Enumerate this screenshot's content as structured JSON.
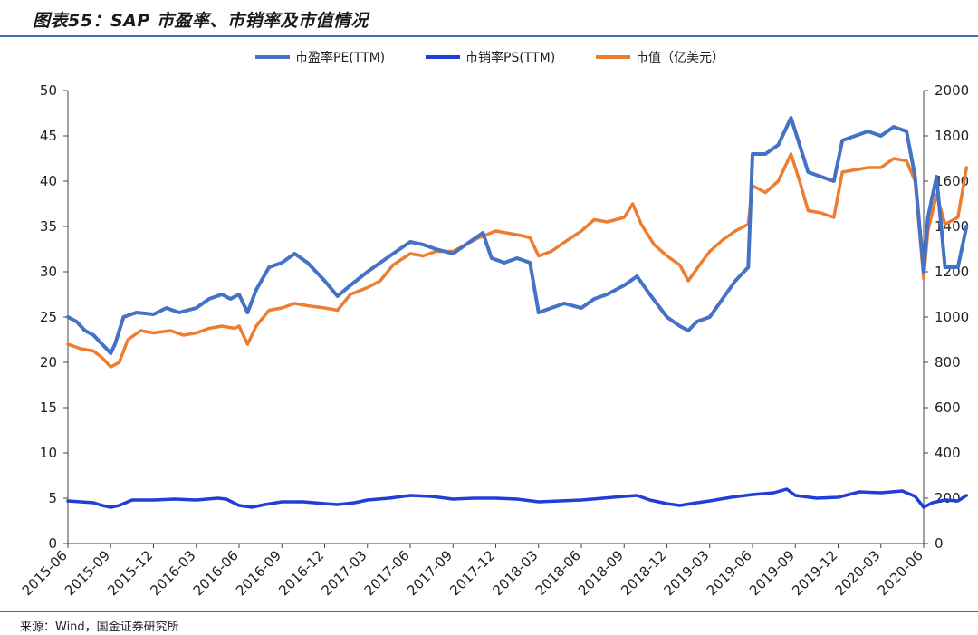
{
  "title": "图表55：SAP 市盈率、市销率及市值情况",
  "source": "来源：Wind，国金证券研究所",
  "colors": {
    "pe": "#4472c4",
    "ps": "#1f3fd6",
    "mv": "#ed7d31",
    "accent": "#3d6db4"
  },
  "chart_data": {
    "type": "line",
    "title": "图表55：SAP 市盈率、市销率及市值情况",
    "x_labels": [
      "2015-06",
      "2015-09",
      "2015-12",
      "2016-03",
      "2016-06",
      "2016-09",
      "2016-12",
      "2017-03",
      "2017-06",
      "2017-09",
      "2017-12",
      "2018-03",
      "2018-06",
      "2018-09",
      "2018-12",
      "2019-03",
      "2019-06",
      "2019-09",
      "2019-12",
      "2020-03",
      "2020-06"
    ],
    "left_axis": {
      "min": 0,
      "max": 50,
      "ticks": [
        0,
        5,
        10,
        15,
        20,
        25,
        30,
        35,
        40,
        45,
        50
      ]
    },
    "right_axis": {
      "min": 0,
      "max": 2000,
      "ticks": [
        0,
        200,
        400,
        600,
        800,
        1000,
        1200,
        1400,
        1600,
        1800,
        2000
      ]
    },
    "legend_position": "top-center",
    "series": [
      {
        "name": "市盈率PE(TTM)",
        "axis": "left",
        "points": [
          [
            0,
            25
          ],
          [
            0.2,
            24.5
          ],
          [
            0.4,
            23.5
          ],
          [
            0.6,
            23
          ],
          [
            0.8,
            22
          ],
          [
            1,
            21
          ],
          [
            1.1,
            22
          ],
          [
            1.3,
            25
          ],
          [
            1.6,
            25.5
          ],
          [
            2,
            25.3
          ],
          [
            2.3,
            26
          ],
          [
            2.6,
            25.5
          ],
          [
            3,
            26
          ],
          [
            3.3,
            27
          ],
          [
            3.6,
            27.5
          ],
          [
            3.8,
            27
          ],
          [
            4,
            27.5
          ],
          [
            4.2,
            25.5
          ],
          [
            4.4,
            28
          ],
          [
            4.7,
            30.5
          ],
          [
            5,
            31
          ],
          [
            5.3,
            32
          ],
          [
            5.6,
            31
          ],
          [
            6,
            29
          ],
          [
            6.3,
            27.3
          ],
          [
            6.6,
            28.5
          ],
          [
            7,
            30
          ],
          [
            7.3,
            31
          ],
          [
            7.6,
            32
          ],
          [
            8,
            33.3
          ],
          [
            8.3,
            33
          ],
          [
            8.6,
            32.5
          ],
          [
            9,
            32
          ],
          [
            9.3,
            33
          ],
          [
            9.7,
            34.3
          ],
          [
            9.9,
            31.5
          ],
          [
            10.2,
            31
          ],
          [
            10.5,
            31.5
          ],
          [
            10.8,
            31
          ],
          [
            11,
            25.5
          ],
          [
            11.3,
            26
          ],
          [
            11.6,
            26.5
          ],
          [
            12,
            26
          ],
          [
            12.3,
            27
          ],
          [
            12.6,
            27.5
          ],
          [
            13,
            28.5
          ],
          [
            13.3,
            29.5
          ],
          [
            13.6,
            27.5
          ],
          [
            14,
            25
          ],
          [
            14.3,
            24
          ],
          [
            14.5,
            23.5
          ],
          [
            14.7,
            24.5
          ],
          [
            15,
            25
          ],
          [
            15.3,
            27
          ],
          [
            15.6,
            29
          ],
          [
            15.9,
            30.5
          ],
          [
            16,
            43
          ],
          [
            16.3,
            43
          ],
          [
            16.6,
            44
          ],
          [
            16.9,
            47
          ],
          [
            17.1,
            44
          ],
          [
            17.3,
            41
          ],
          [
            17.6,
            40.5
          ],
          [
            17.9,
            40
          ],
          [
            18.1,
            44.5
          ],
          [
            18.4,
            45
          ],
          [
            18.7,
            45.5
          ],
          [
            19,
            45
          ],
          [
            19.3,
            46
          ],
          [
            19.6,
            45.5
          ],
          [
            19.8,
            40.5
          ],
          [
            20,
            30
          ],
          [
            20.1,
            36
          ],
          [
            20.3,
            40.5
          ],
          [
            20.5,
            30.5
          ],
          [
            20.8,
            30.5
          ],
          [
            21,
            35
          ]
        ]
      },
      {
        "name": "市销率PS(TTM)",
        "axis": "left",
        "points": [
          [
            0,
            4.7
          ],
          [
            0.3,
            4.6
          ],
          [
            0.6,
            4.5
          ],
          [
            0.8,
            4.2
          ],
          [
            1,
            4.0
          ],
          [
            1.2,
            4.2
          ],
          [
            1.5,
            4.8
          ],
          [
            2,
            4.8
          ],
          [
            2.5,
            4.9
          ],
          [
            3,
            4.8
          ],
          [
            3.5,
            5.0
          ],
          [
            3.7,
            4.9
          ],
          [
            4,
            4.2
          ],
          [
            4.3,
            4.0
          ],
          [
            4.6,
            4.3
          ],
          [
            5,
            4.6
          ],
          [
            5.5,
            4.6
          ],
          [
            6,
            4.4
          ],
          [
            6.3,
            4.3
          ],
          [
            6.7,
            4.5
          ],
          [
            7,
            4.8
          ],
          [
            7.5,
            5.0
          ],
          [
            8,
            5.3
          ],
          [
            8.5,
            5.2
          ],
          [
            9,
            4.9
          ],
          [
            9.5,
            5.0
          ],
          [
            10,
            5.0
          ],
          [
            10.5,
            4.9
          ],
          [
            11,
            4.6
          ],
          [
            11.5,
            4.7
          ],
          [
            12,
            4.8
          ],
          [
            12.5,
            5.0
          ],
          [
            13,
            5.2
          ],
          [
            13.3,
            5.3
          ],
          [
            13.6,
            4.8
          ],
          [
            14,
            4.4
          ],
          [
            14.3,
            4.2
          ],
          [
            14.7,
            4.5
          ],
          [
            15,
            4.7
          ],
          [
            15.5,
            5.1
          ],
          [
            16,
            5.4
          ],
          [
            16.5,
            5.6
          ],
          [
            16.8,
            6.0
          ],
          [
            17,
            5.3
          ],
          [
            17.5,
            5.0
          ],
          [
            18,
            5.1
          ],
          [
            18.5,
            5.7
          ],
          [
            19,
            5.6
          ],
          [
            19.5,
            5.8
          ],
          [
            19.8,
            5.2
          ],
          [
            20,
            4.0
          ],
          [
            20.2,
            4.5
          ],
          [
            20.5,
            4.8
          ],
          [
            20.8,
            4.7
          ],
          [
            21,
            5.3
          ]
        ]
      },
      {
        "name": "市值（亿美元）",
        "axis": "right",
        "points": [
          [
            0,
            880
          ],
          [
            0.3,
            860
          ],
          [
            0.6,
            850
          ],
          [
            0.8,
            820
          ],
          [
            1,
            780
          ],
          [
            1.2,
            800
          ],
          [
            1.4,
            900
          ],
          [
            1.7,
            940
          ],
          [
            2,
            930
          ],
          [
            2.4,
            940
          ],
          [
            2.7,
            920
          ],
          [
            3,
            930
          ],
          [
            3.3,
            950
          ],
          [
            3.6,
            960
          ],
          [
            3.9,
            950
          ],
          [
            4,
            960
          ],
          [
            4.2,
            880
          ],
          [
            4.4,
            960
          ],
          [
            4.7,
            1030
          ],
          [
            5,
            1040
          ],
          [
            5.3,
            1060
          ],
          [
            5.6,
            1050
          ],
          [
            6,
            1040
          ],
          [
            6.3,
            1030
          ],
          [
            6.6,
            1100
          ],
          [
            7,
            1130
          ],
          [
            7.3,
            1160
          ],
          [
            7.6,
            1230
          ],
          [
            8,
            1280
          ],
          [
            8.3,
            1270
          ],
          [
            8.6,
            1290
          ],
          [
            9,
            1290
          ],
          [
            9.3,
            1320
          ],
          [
            9.6,
            1350
          ],
          [
            10,
            1380
          ],
          [
            10.3,
            1370
          ],
          [
            10.6,
            1360
          ],
          [
            10.8,
            1350
          ],
          [
            11,
            1270
          ],
          [
            11.3,
            1290
          ],
          [
            11.6,
            1330
          ],
          [
            12,
            1380
          ],
          [
            12.3,
            1430
          ],
          [
            12.6,
            1420
          ],
          [
            13,
            1440
          ],
          [
            13.2,
            1500
          ],
          [
            13.4,
            1410
          ],
          [
            13.7,
            1320
          ],
          [
            14,
            1270
          ],
          [
            14.3,
            1230
          ],
          [
            14.5,
            1160
          ],
          [
            14.8,
            1240
          ],
          [
            15,
            1290
          ],
          [
            15.3,
            1340
          ],
          [
            15.6,
            1380
          ],
          [
            15.9,
            1410
          ],
          [
            16,
            1580
          ],
          [
            16.3,
            1550
          ],
          [
            16.6,
            1600
          ],
          [
            16.9,
            1720
          ],
          [
            17.1,
            1600
          ],
          [
            17.3,
            1470
          ],
          [
            17.6,
            1460
          ],
          [
            17.9,
            1440
          ],
          [
            18.1,
            1640
          ],
          [
            18.4,
            1650
          ],
          [
            18.7,
            1660
          ],
          [
            19,
            1660
          ],
          [
            19.3,
            1700
          ],
          [
            19.6,
            1690
          ],
          [
            19.8,
            1600
          ],
          [
            20,
            1170
          ],
          [
            20.1,
            1380
          ],
          [
            20.3,
            1540
          ],
          [
            20.5,
            1410
          ],
          [
            20.8,
            1440
          ],
          [
            21,
            1660
          ]
        ]
      }
    ]
  }
}
